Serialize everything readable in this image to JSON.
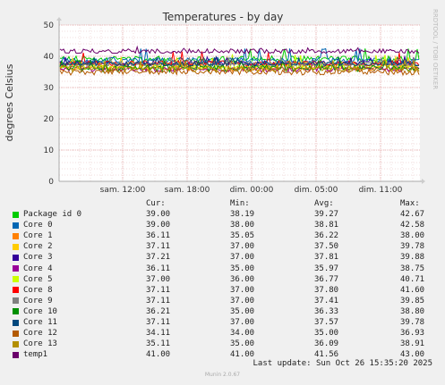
{
  "chart_data": {
    "type": "line",
    "title": "Temperatures - by day",
    "ylabel": "degrees Celsius",
    "side_label": "RRDTOOL / TOBI OETIKER",
    "x_ticks": [
      "sam. 12:00",
      "sam. 18:00",
      "dim. 00:00",
      "dim. 05:00",
      "dim. 11:00"
    ],
    "y_ticks": [
      0,
      10,
      20,
      30,
      40,
      50
    ],
    "ylim": [
      0,
      50
    ],
    "grid": true,
    "columns": [
      "Cur:",
      "Min:",
      "Avg:",
      "Max:"
    ],
    "series": [
      {
        "name": "Package id 0",
        "color": "#00cc00",
        "cur": "39.00",
        "min": "38.19",
        "avg": "39.27",
        "max": "42.67"
      },
      {
        "name": "Core 0",
        "color": "#0066b3",
        "cur": "39.00",
        "min": "38.00",
        "avg": "38.81",
        "max": "42.58"
      },
      {
        "name": "Core 1",
        "color": "#ff8000",
        "cur": "36.11",
        "min": "35.05",
        "avg": "36.22",
        "max": "38.00"
      },
      {
        "name": "Core 2",
        "color": "#ffcc00",
        "cur": "37.11",
        "min": "37.00",
        "avg": "37.50",
        "max": "39.78"
      },
      {
        "name": "Core 3",
        "color": "#330099",
        "cur": "37.21",
        "min": "37.00",
        "avg": "37.81",
        "max": "39.88"
      },
      {
        "name": "Core 4",
        "color": "#990099",
        "cur": "36.11",
        "min": "35.00",
        "avg": "35.97",
        "max": "38.75"
      },
      {
        "name": "Core 5",
        "color": "#ccff00",
        "cur": "37.00",
        "min": "36.00",
        "avg": "36.77",
        "max": "40.71"
      },
      {
        "name": "Core 8",
        "color": "#ff0000",
        "cur": "37.11",
        "min": "37.00",
        "avg": "37.80",
        "max": "41.60"
      },
      {
        "name": "Core 9",
        "color": "#808080",
        "cur": "37.11",
        "min": "37.00",
        "avg": "37.41",
        "max": "39.85"
      },
      {
        "name": "Core 10",
        "color": "#008f00",
        "cur": "36.21",
        "min": "35.00",
        "avg": "36.33",
        "max": "38.80"
      },
      {
        "name": "Core 11",
        "color": "#00487d",
        "cur": "37.11",
        "min": "37.00",
        "avg": "37.57",
        "max": "39.78"
      },
      {
        "name": "Core 12",
        "color": "#b35a00",
        "cur": "34.11",
        "min": "34.00",
        "avg": "35.00",
        "max": "36.93"
      },
      {
        "name": "Core 13",
        "color": "#b38f00",
        "cur": "35.11",
        "min": "35.00",
        "avg": "36.09",
        "max": "38.91"
      },
      {
        "name": "temp1",
        "color": "#6b006b",
        "cur": "41.00",
        "min": "41.00",
        "avg": "41.56",
        "max": "43.00"
      }
    ]
  },
  "footer": {
    "last_update": "Last update: Sun Oct 26 15:35:20 2025",
    "version": "Munin 2.0.67"
  }
}
